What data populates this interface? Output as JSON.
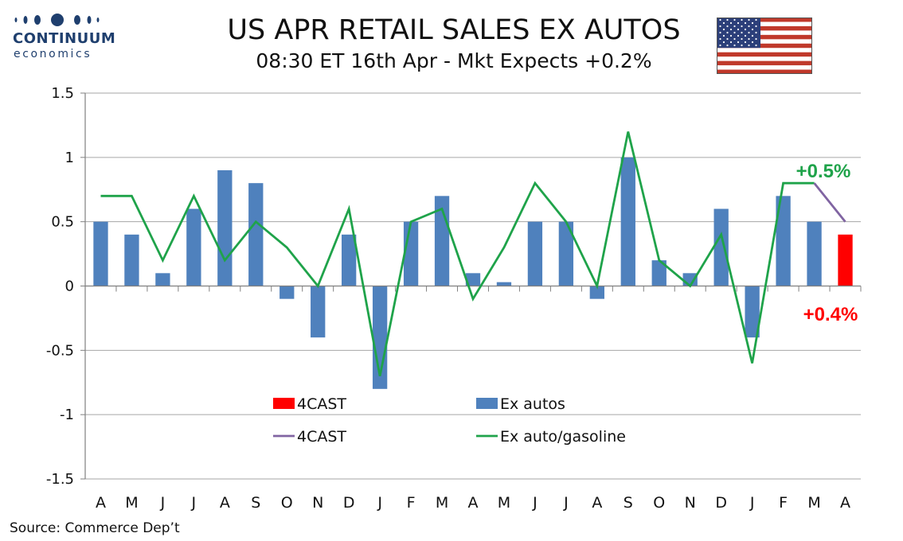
{
  "logo": {
    "word": "CONTINUUM",
    "sub": "economics",
    "color": "#1f3f6e"
  },
  "header": {
    "title": "US APR RETAIL SALES EX AUTOS",
    "subtitle": "08:30 ET 16th Apr - Mkt Expects +0.2%"
  },
  "footer": {
    "source": "Source: Commerce Dep’t"
  },
  "chart_data": {
    "type": "bar",
    "categories": [
      "A",
      "M",
      "J",
      "J",
      "A",
      "S",
      "O",
      "N",
      "D",
      "J",
      "F",
      "M",
      "A",
      "M",
      "J",
      "J",
      "A",
      "S",
      "O",
      "N",
      "D",
      "J",
      "F",
      "M",
      "A"
    ],
    "ylim": [
      -1.5,
      1.5
    ],
    "yticks": [
      1.5,
      1,
      0.5,
      0,
      -0.5,
      -1,
      -1.5
    ],
    "ytick_labels": [
      "1.5",
      "1",
      "0.5",
      "0",
      "-0.5",
      "-1",
      "-1.5"
    ],
    "grid": true,
    "legend_position": "inside-bottom-left",
    "series": [
      {
        "name": "Ex autos",
        "kind": "bar",
        "color": "#4f81bd",
        "values": [
          0.5,
          0.4,
          0.1,
          0.6,
          0.9,
          0.8,
          -0.1,
          -0.4,
          0.4,
          -0.8,
          0.5,
          0.7,
          0.1,
          0.03,
          0.5,
          0.5,
          -0.1,
          1.0,
          0.2,
          0.1,
          0.6,
          -0.4,
          0.7,
          0.5,
          null
        ]
      },
      {
        "name": "4CAST",
        "kind": "bar",
        "color": "#ff0000",
        "values": [
          null,
          null,
          null,
          null,
          null,
          null,
          null,
          null,
          null,
          null,
          null,
          null,
          null,
          null,
          null,
          null,
          null,
          null,
          null,
          null,
          null,
          null,
          null,
          null,
          0.4
        ]
      },
      {
        "name": "Ex auto/gasoline",
        "kind": "line",
        "color": "#1fa34a",
        "values": [
          0.7,
          0.7,
          0.2,
          0.7,
          0.2,
          0.5,
          0.3,
          0.0,
          0.6,
          -0.7,
          0.5,
          0.6,
          -0.1,
          0.3,
          0.8,
          0.5,
          0.0,
          1.2,
          0.2,
          0.0,
          0.4,
          -0.6,
          0.8,
          0.8,
          null
        ]
      },
      {
        "name": "4CAST",
        "kind": "line",
        "color": "#8064a2",
        "values": [
          null,
          null,
          null,
          null,
          null,
          null,
          null,
          null,
          null,
          null,
          null,
          null,
          null,
          null,
          null,
          null,
          null,
          null,
          null,
          null,
          null,
          null,
          null,
          0.8,
          0.5
        ]
      }
    ],
    "annotations": [
      {
        "text": "+0.5%",
        "color": "#1fa34a"
      },
      {
        "text": "+0.4%",
        "color": "#ff0000"
      }
    ]
  }
}
